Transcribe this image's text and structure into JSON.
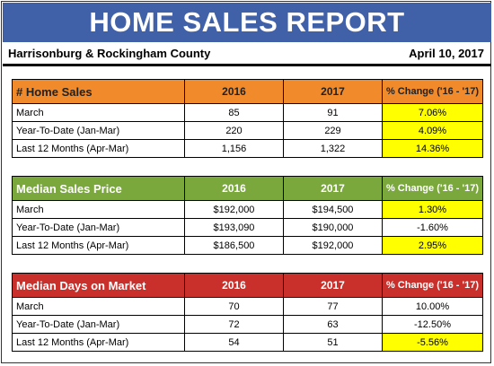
{
  "title": "HOME SALES REPORT",
  "location": "Harrisonburg & Rockingham County",
  "date": "April 10, 2017",
  "colors": {
    "banner": "#4060a8",
    "orange": "#f08a2a",
    "green": "#7aa83c",
    "red": "#c9302c",
    "highlight": "#ffff00"
  },
  "tables": [
    {
      "title": "# Home Sales",
      "col1": "2016",
      "col2": "2017",
      "col3": "% Change ('16 - '17)",
      "rows": [
        {
          "label": "March",
          "v2016": "85",
          "v2017": "91",
          "change": "7.06%",
          "highlight": true
        },
        {
          "label": "Year-To-Date (Jan-Mar)",
          "v2016": "220",
          "v2017": "229",
          "change": "4.09%",
          "highlight": true
        },
        {
          "label": "Last 12 Months (Apr-Mar)",
          "v2016": "1,156",
          "v2017": "1,322",
          "change": "14.36%",
          "highlight": true
        }
      ]
    },
    {
      "title": "Median Sales Price",
      "col1": "2016",
      "col2": "2017",
      "col3": "% Change ('16 - '17)",
      "rows": [
        {
          "label": "March",
          "v2016": "$192,000",
          "v2017": "$194,500",
          "change": "1.30%",
          "highlight": true
        },
        {
          "label": "Year-To-Date (Jan-Mar)",
          "v2016": "$193,090",
          "v2017": "$190,000",
          "change": "-1.60%",
          "highlight": false
        },
        {
          "label": "Last 12 Months (Apr-Mar)",
          "v2016": "$186,500",
          "v2017": "$192,000",
          "change": "2.95%",
          "highlight": true
        }
      ]
    },
    {
      "title": "Median Days on Market",
      "col1": "2016",
      "col2": "2017",
      "col3": "% Change ('16 - '17)",
      "rows": [
        {
          "label": "March",
          "v2016": "70",
          "v2017": "77",
          "change": "10.00%",
          "highlight": false
        },
        {
          "label": "Year-To-Date (Jan-Mar)",
          "v2016": "72",
          "v2017": "63",
          "change": "-12.50%",
          "highlight": false
        },
        {
          "label": "Last 12 Months (Apr-Mar)",
          "v2016": "54",
          "v2017": "51",
          "change": "-5.56%",
          "highlight": true
        }
      ]
    }
  ]
}
